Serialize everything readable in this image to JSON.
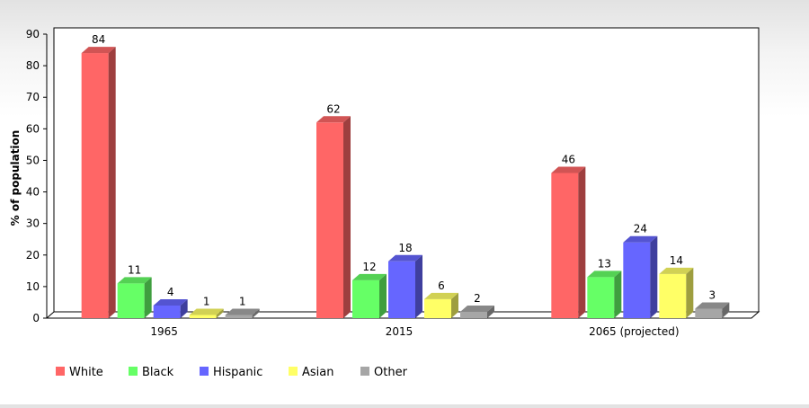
{
  "chart_data": {
    "type": "bar",
    "title": "",
    "xlabel": "",
    "ylabel": "% of population",
    "ylim": [
      0,
      90
    ],
    "yticks": [
      "0",
      "10",
      "20",
      "30",
      "40",
      "50",
      "60",
      "70",
      "80",
      "90"
    ],
    "categories": [
      "1965",
      "2015",
      "2065 (projected)"
    ],
    "grid": false,
    "style": "3d",
    "legend_position": "bottom-left",
    "series": [
      {
        "name": "White",
        "values": [
          84,
          62,
          46
        ],
        "color": "#ff6666"
      },
      {
        "name": "Black",
        "values": [
          11,
          12,
          13
        ],
        "color": "#66ff66"
      },
      {
        "name": "Hispanic",
        "values": [
          4,
          18,
          24
        ],
        "color": "#6666ff"
      },
      {
        "name": "Asian",
        "values": [
          1,
          6,
          14
        ],
        "color": "#ffff66"
      },
      {
        "name": "Other",
        "values": [
          1,
          2,
          3
        ],
        "color": "#a6a6a6"
      }
    ]
  }
}
